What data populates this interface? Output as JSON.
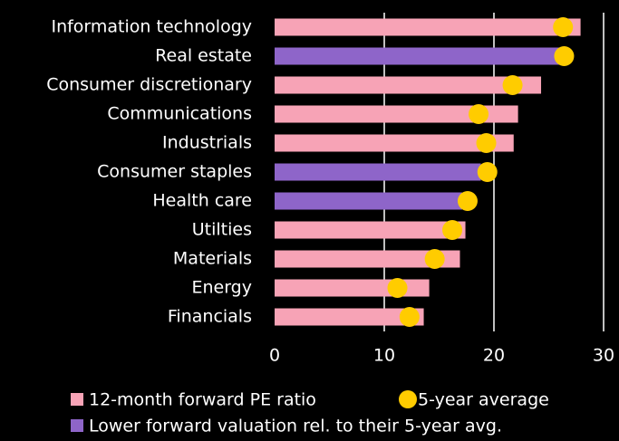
{
  "chart_data": {
    "type": "bar",
    "categories": [
      "Information technology",
      "Real estate",
      "Consumer discretionary",
      "Communications",
      "Industrials",
      "Consumer staples",
      "Health care",
      "Utilties",
      "Materials",
      "Energy",
      "Financials"
    ],
    "series": [
      {
        "name": "12-month forward PE ratio",
        "color": "#f7a3b6",
        "values": [
          27.9,
          26.2,
          24.3,
          22.2,
          21.8,
          18.8,
          17.1,
          17.4,
          16.9,
          14.1,
          13.6
        ],
        "point_colors": [
          "#f7a3b6",
          "#8e65c9",
          "#f7a3b6",
          "#f7a3b6",
          "#f7a3b6",
          "#8e65c9",
          "#8e65c9",
          "#f7a3b6",
          "#f7a3b6",
          "#f7a3b6",
          "#f7a3b6"
        ]
      },
      {
        "name": "5-year average",
        "color": "#ffcc00",
        "marker": "dot",
        "values": [
          26.3,
          26.4,
          21.7,
          18.6,
          19.3,
          19.4,
          17.6,
          16.2,
          14.6,
          11.2,
          12.3
        ]
      }
    ],
    "legend_extra": {
      "name": "Lower forward valuation rel. to their 5-year avg.",
      "color": "#8e65c9"
    },
    "xlim": [
      0,
      30
    ],
    "xticks": [
      0,
      10,
      20,
      30
    ],
    "grid": true
  }
}
